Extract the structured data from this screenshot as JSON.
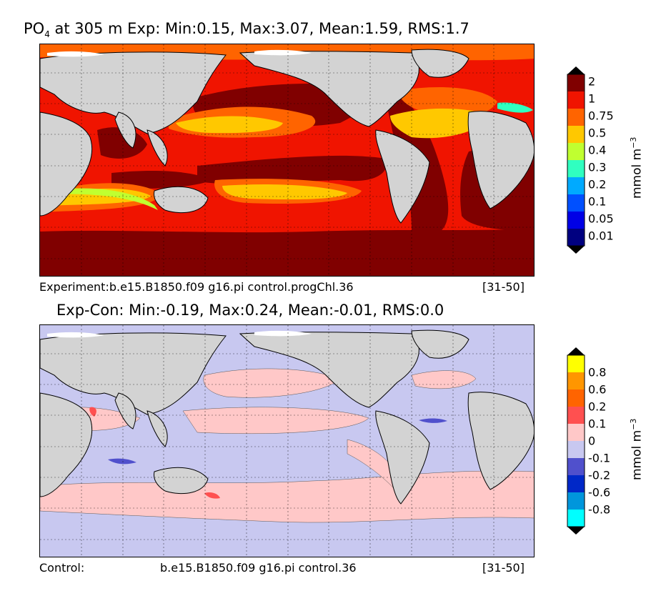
{
  "top_panel": {
    "title_var": "PO",
    "title_sub": "4",
    "title_rest": " at 305 m Exp: Min:0.15, Max:3.07, Mean:1.59, RMS:1.7",
    "caption_left": "Experiment:b.e15.B1850.f09 g16.pi control.progChl.36",
    "caption_right": "[31-50]",
    "colorbar": {
      "unit_main": "mmol m",
      "unit_sup": "−3",
      "levels": [
        "0.01",
        "0.05",
        "0.1",
        "0.2",
        "0.3",
        "0.4",
        "0.5",
        "0.75",
        "1",
        "2"
      ],
      "colors": [
        "#000080",
        "#0000e6",
        "#0050ff",
        "#00aaff",
        "#30ffc0",
        "#c0ff30",
        "#ffc800",
        "#ff6400",
        "#f01400",
        "#800000"
      ],
      "over_color": "#000000",
      "under_color": "#000000"
    }
  },
  "bottom_panel": {
    "title": "Exp-Con: Min:-0.19, Max:0.24, Mean:-0.01, RMS:0.0",
    "caption_left": "Control:",
    "caption_mid": "b.e15.B1850.f09 g16.pi control.36",
    "caption_right": "[31-50]",
    "colorbar": {
      "unit_main": "mmol m",
      "unit_sup": "−3",
      "levels": [
        "-0.8",
        "-0.6",
        "-0.2",
        "-0.1",
        "0",
        "0.1",
        "0.2",
        "0.6",
        "0.8"
      ],
      "colors": [
        "#00ffff",
        "#0096dc",
        "#0028c8",
        "#5050cc",
        "#c8c8f0",
        "#ffc8c8",
        "#ff5050",
        "#ff6400",
        "#ff9600",
        "#ffff00"
      ],
      "over_color": "#000000",
      "under_color": "#000000"
    }
  },
  "map_style": {
    "land": "#d3d3d3",
    "ice": "#ffffff",
    "grid": "dashed"
  }
}
